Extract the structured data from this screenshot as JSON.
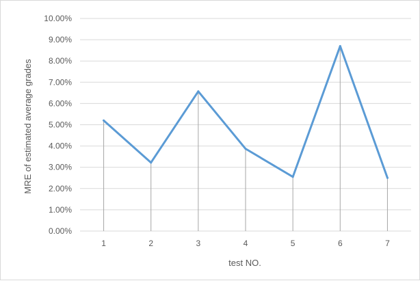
{
  "chart_data": {
    "type": "line",
    "title": "",
    "xlabel": "test NO.",
    "ylabel": "MRE of estimated average grades",
    "categories": [
      "1",
      "2",
      "3",
      "4",
      "5",
      "6",
      "7"
    ],
    "series": [
      {
        "values": [
          5.2,
          3.22,
          6.57,
          3.87,
          2.55,
          8.7,
          2.5
        ]
      }
    ],
    "ylim": [
      0,
      10
    ],
    "yticks": [
      "0.00%",
      "1.00%",
      "2.00%",
      "3.00%",
      "4.00%",
      "5.00%",
      "6.00%",
      "7.00%",
      "8.00%",
      "9.00%",
      "10.00%"
    ],
    "grid": true,
    "drop_lines": true,
    "legend": "none",
    "colors": {
      "line": "#5b9bd5",
      "grid": "#d9d9d9",
      "drop_line": "#a6a6a6",
      "text": "#595959"
    }
  }
}
